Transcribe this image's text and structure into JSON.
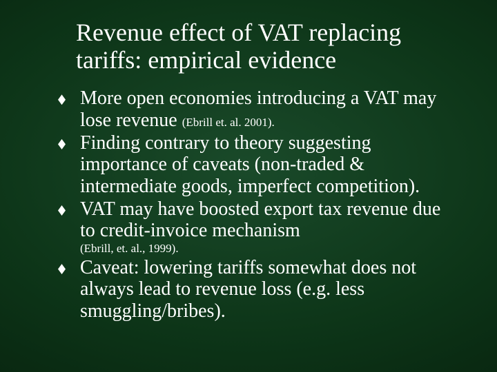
{
  "slide": {
    "title": "Revenue effect of VAT replacing tariffs: empirical evidence",
    "title_fontsize": 36,
    "body_fontsize": 28,
    "citation_fontsize": 17,
    "text_color": "#ffffff",
    "background": {
      "type": "radial-gradient",
      "inner_color": "#1a4a2a",
      "mid_color": "#0d3518",
      "outer_color": "#041808"
    },
    "bullets": [
      {
        "text_a": "More open economies introducing a VAT may lose revenue ",
        "citation": "(Ebrill et. al. 2001)."
      },
      {
        "text_a": "Finding contrary to theory suggesting importance of caveats (non-traded & intermediate goods, imperfect competition)."
      },
      {
        "text_a": "VAT may have boosted export tax revenue due to credit-invoice mechanism",
        "citation_below": "(Ebrill, et. al., 1999)."
      },
      {
        "text_a": "Caveat: lowering tariffs somewhat does not always lead to revenue loss (e.g. less smuggling/bribes)."
      }
    ],
    "bullet_marker": {
      "shape": "diamond",
      "color": "#ffffff",
      "width": 11,
      "height": 15
    }
  }
}
